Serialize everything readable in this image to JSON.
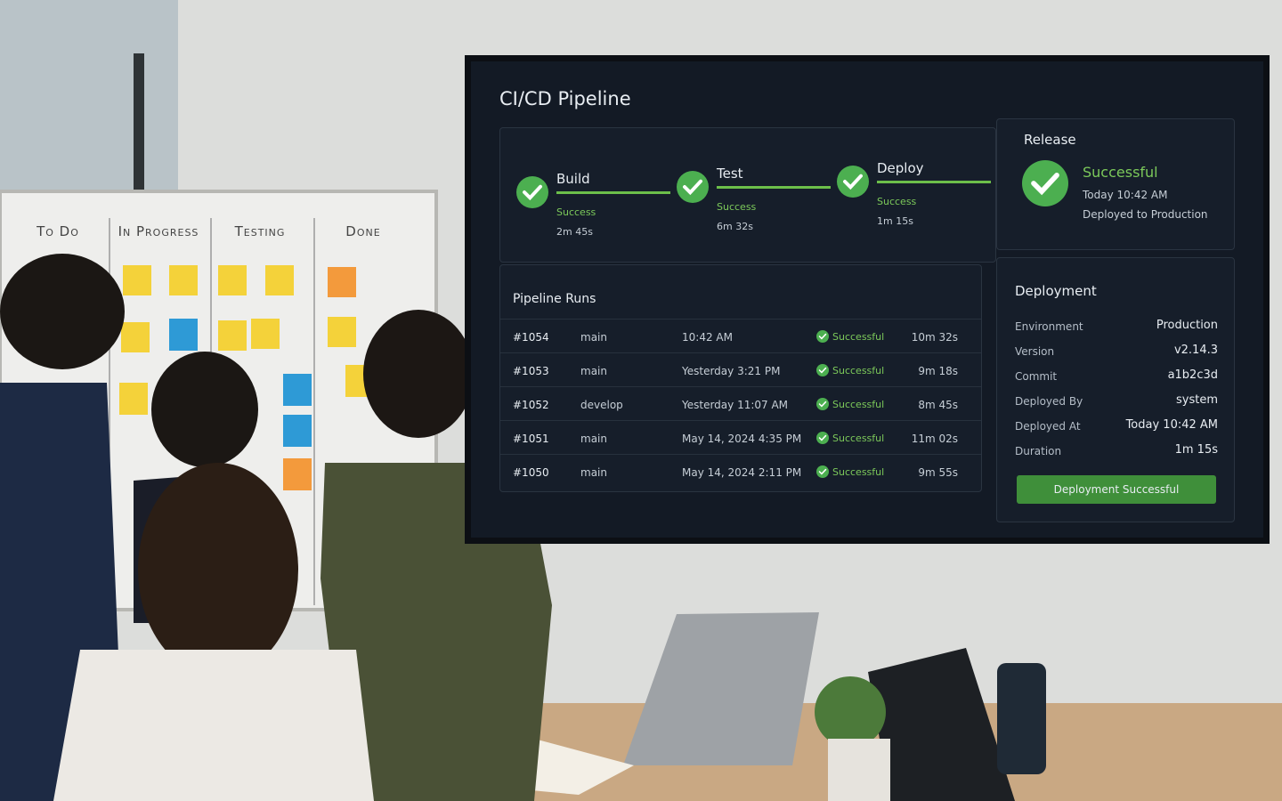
{
  "kanban": {
    "columns": [
      "To Do",
      "In Progress",
      "Testing",
      "Done"
    ]
  },
  "screen": {
    "title": "CI/CD Pipeline",
    "stages": [
      {
        "name": "Build",
        "status": "Success",
        "duration": "2m 45s"
      },
      {
        "name": "Test",
        "status": "Success",
        "duration": "6m 32s"
      },
      {
        "name": "Deploy",
        "status": "Success",
        "duration": "1m 15s"
      }
    ],
    "release": {
      "title": "Release",
      "status": "Successful",
      "time": "Today 10:42 AM",
      "note": "Deployed to Production"
    },
    "runs": {
      "title": "Pipeline Runs",
      "rows": [
        [
          "#1054",
          "main",
          "10:42 AM",
          "Successful",
          "10m 32s"
        ],
        [
          "#1053",
          "main",
          "Yesterday 3:21 PM",
          "Successful",
          "9m 18s"
        ],
        [
          "#1052",
          "develop",
          "Yesterday 11:07 AM",
          "Successful",
          "8m 45s"
        ],
        [
          "#1051",
          "main",
          "May 14, 2024 4:35 PM",
          "Successful",
          "11m 02s"
        ],
        [
          "#1050",
          "main",
          "May 14, 2024 2:11 PM",
          "Successful",
          "9m 55s"
        ]
      ]
    },
    "deployment": {
      "title": "Deployment",
      "fields": [
        [
          "Environment",
          "Production"
        ],
        [
          "Version",
          "v2.14.3"
        ],
        [
          "Commit",
          "a1b2c3d"
        ],
        [
          "Deployed By",
          "system"
        ],
        [
          "Deployed At",
          "Today 10:42 AM"
        ],
        [
          "Duration",
          "1m 15s"
        ]
      ],
      "button": "Deployment Successful"
    }
  }
}
